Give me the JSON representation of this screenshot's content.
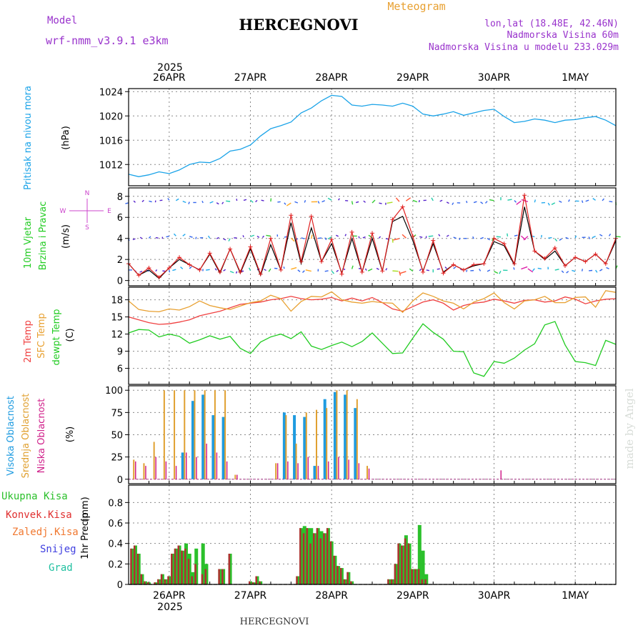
{
  "header": {
    "model_label": "Model",
    "model_name": "wrf-nmm_v3.9.1 e3km",
    "station": "HERCEGNOVI",
    "meteogram": "Meteogram",
    "lonlat": "lon,lat (18.48E, 42.46N)",
    "altitude": "Nadmorska Visina 60m",
    "model_altitude": "Nadmorska Visina u modelu 233.029m",
    "footer_station": "HERCEGNOVI",
    "watermark": "made by Angel"
  },
  "colors": {
    "pressure": "#1aa3e8",
    "wind_speed": "#e02020",
    "temp2m": "#f04040",
    "sfc_temp": "#e8a030",
    "dewpt": "#22cc22",
    "cloud_high": "#1e9be0",
    "cloud_mid": "#e0a030",
    "cloud_low": "#d0208a",
    "precip_total": "#2bc02b",
    "precip_conv": "#e03030",
    "precip_frozen": "#f07830",
    "snow": "#4040e0",
    "hail": "#20c0a0",
    "model_purple": "#9933cc"
  },
  "time_axis": {
    "year": "2025",
    "dates": [
      "26APR",
      "27APR",
      "28APR",
      "29APR",
      "30APR",
      "1MAY"
    ],
    "start_hour": 0,
    "end_hour": 144
  },
  "chart_data": [
    {
      "type": "line",
      "panel": "pressure",
      "ylabel": "Pritisak na nivou mora",
      "unit": "(hPa)",
      "yticks": [
        "1012",
        "1016",
        "1020",
        "1024"
      ],
      "ylim": [
        1008.5,
        1024.5
      ],
      "x": [
        0,
        3,
        6,
        9,
        12,
        15,
        18,
        21,
        24,
        27,
        30,
        33,
        36,
        39,
        42,
        45,
        48,
        51,
        54,
        57,
        60,
        63,
        66,
        69,
        72,
        75,
        78,
        81,
        84,
        87,
        90,
        93,
        96,
        99,
        102,
        105,
        108,
        111,
        114,
        117,
        120,
        123,
        126,
        129,
        132,
        135,
        138,
        141,
        144
      ],
      "values": [
        1010.4,
        1010.0,
        1010.3,
        1010.8,
        1010.5,
        1011.1,
        1012.0,
        1012.4,
        1012.3,
        1013.0,
        1014.2,
        1014.5,
        1015.2,
        1016.7,
        1017.9,
        1018.4,
        1019.0,
        1020.5,
        1021.3,
        1022.5,
        1023.4,
        1023.2,
        1021.8,
        1021.6,
        1021.9,
        1021.8,
        1021.6,
        1022.1,
        1021.6,
        1020.3,
        1020.0,
        1020.3,
        1020.7,
        1020.1,
        1020.5,
        1020.9,
        1021.1,
        1019.9,
        1018.9,
        1019.1,
        1019.5,
        1019.3,
        1018.9,
        1019.3,
        1019.4,
        1019.7,
        1019.9,
        1019.3,
        1018.4
      ]
    },
    {
      "type": "line",
      "panel": "wind",
      "ylabel": "10m Vjetar",
      "ylabel2": "Brzina i Pravac",
      "unit": "(m/s)",
      "compass": {
        "n": "N",
        "s": "S",
        "e": "E",
        "w": "W"
      },
      "yticks": [
        "0",
        "2",
        "4",
        "6",
        "8"
      ],
      "ylim": [
        -0.5,
        8.8
      ],
      "x": [
        0,
        3,
        6,
        9,
        12,
        15,
        18,
        21,
        24,
        27,
        30,
        33,
        36,
        39,
        42,
        45,
        48,
        51,
        54,
        57,
        60,
        63,
        66,
        69,
        72,
        75,
        78,
        81,
        84,
        87,
        90,
        93,
        96,
        99,
        102,
        105,
        108,
        111,
        114,
        117,
        120,
        123,
        126,
        129,
        132,
        135,
        138,
        141,
        144
      ],
      "values": [
        1.6,
        0.5,
        1.2,
        0.3,
        1.2,
        2.2,
        1.5,
        1.0,
        2.6,
        0.8,
        3.0,
        0.8,
        3.2,
        0.6,
        4.0,
        1.0,
        6.2,
        1.8,
        6.1,
        1.8,
        3.9,
        0.6,
        4.6,
        0.8,
        4.5,
        0.9,
        5.8,
        7.0,
        4.2,
        0.8,
        3.8,
        0.7,
        1.5,
        1.0,
        1.5,
        1.6,
        4.0,
        3.5,
        1.6,
        8.1,
        2.8,
        2.1,
        3.1,
        1.4,
        2.2,
        1.8,
        2.5,
        1.6,
        4.0
      ],
      "model_speed": [
        1.6,
        0.5,
        1.0,
        0.2,
        1.2,
        2.0,
        1.5,
        1.0,
        2.5,
        0.7,
        3.0,
        0.7,
        3.0,
        0.5,
        3.4,
        1.0,
        5.5,
        1.6,
        5.0,
        1.8,
        3.5,
        0.7,
        4.0,
        0.8,
        4.0,
        0.9,
        5.6,
        6.1,
        3.8,
        0.9,
        3.5,
        0.8,
        1.5,
        1.0,
        1.4,
        1.6,
        3.7,
        3.3,
        1.5,
        7.0,
        2.8,
        2.0,
        2.8,
        1.4,
        2.2,
        1.8,
        2.5,
        1.6,
        3.8
      ]
    },
    {
      "type": "line",
      "panel": "temperature",
      "ylabel_2m": "2m Temp",
      "ylabel_sfc": "SFC Temp",
      "ylabel_dew": "dewpt Temp",
      "unit": "(C)",
      "yticks": [
        "6",
        "9",
        "12",
        "15",
        "18"
      ],
      "ylim": [
        3.2,
        20.2
      ],
      "x": [
        0,
        3,
        6,
        9,
        12,
        15,
        18,
        21,
        24,
        27,
        30,
        33,
        36,
        39,
        42,
        45,
        48,
        51,
        54,
        57,
        60,
        63,
        66,
        69,
        72,
        75,
        78,
        81,
        84,
        87,
        90,
        93,
        96,
        99,
        102,
        105,
        108,
        111,
        114,
        117,
        120,
        123,
        126,
        129,
        132,
        135,
        138,
        141,
        144
      ],
      "series": [
        {
          "name": "2m Temp",
          "values": [
            15.0,
            14.5,
            14.0,
            13.7,
            13.8,
            14.1,
            14.5,
            15.2,
            15.6,
            16.0,
            16.6,
            17.2,
            17.4,
            17.6,
            18.0,
            18.2,
            18.6,
            18.2,
            18.0,
            18.1,
            18.4,
            17.8,
            18.3,
            17.8,
            18.4,
            17.5,
            16.4,
            16.0,
            16.8,
            17.6,
            18.0,
            17.4,
            16.2,
            17.0,
            17.4,
            17.6,
            18.1,
            17.8,
            17.4,
            17.9,
            18.0,
            17.6,
            17.8,
            18.5,
            18.1,
            17.3,
            17.8,
            18.1,
            18.2
          ]
        },
        {
          "name": "SFC Temp",
          "values": [
            17.8,
            16.3,
            16.0,
            15.9,
            16.4,
            16.2,
            16.8,
            17.8,
            17.0,
            16.6,
            16.3,
            16.9,
            17.5,
            17.8,
            18.8,
            18.2,
            16.0,
            17.7,
            18.6,
            18.5,
            19.4,
            18.0,
            17.6,
            17.4,
            17.7,
            17.5,
            17.4,
            15.8,
            17.8,
            19.2,
            18.6,
            17.8,
            17.4,
            16.4,
            17.6,
            18.2,
            19.2,
            17.5,
            16.4,
            17.8,
            18.0,
            18.6,
            17.5,
            17.5,
            18.4,
            18.5,
            16.7,
            19.6,
            19.3
          ]
        },
        {
          "name": "dewpt Temp",
          "values": [
            12.2,
            12.8,
            12.7,
            11.5,
            12.0,
            11.6,
            10.4,
            11.0,
            11.7,
            11.1,
            11.6,
            9.5,
            8.6,
            10.6,
            11.5,
            12.0,
            11.2,
            12.4,
            9.9,
            9.3,
            10.0,
            10.6,
            9.8,
            10.7,
            12.2,
            10.4,
            8.6,
            8.7,
            11.3,
            13.8,
            12.3,
            11.1,
            9.0,
            8.9,
            5.2,
            4.6,
            7.2,
            6.9,
            7.8,
            9.2,
            10.3,
            13.6,
            14.2,
            10.1,
            7.2,
            7.0,
            6.5,
            10.9,
            10.2
          ]
        }
      ]
    },
    {
      "type": "bar",
      "panel": "cloud",
      "ylabel_high": "Visoka Oblacnost",
      "ylabel_mid": "Srednja Oblacnost",
      "ylabel_low": "Niska Oblacnost",
      "unit": "(%)",
      "yticks": [
        "0",
        "25",
        "50",
        "75",
        "100"
      ],
      "ylim": [
        -5,
        105
      ],
      "x": [
        1,
        4,
        7,
        10,
        13,
        16,
        19,
        22,
        25,
        28,
        31,
        34,
        37,
        40,
        43,
        46,
        49,
        52,
        55,
        58,
        61,
        64,
        67,
        70,
        73,
        76,
        79,
        82,
        85,
        88,
        91,
        94,
        97,
        100,
        103,
        106,
        109,
        112,
        115,
        118,
        121,
        124,
        127,
        130,
        133,
        136,
        139,
        142
      ],
      "series": [
        {
          "name": "Visoka Oblacnost",
          "values": [
            0,
            0,
            0,
            0,
            0,
            30,
            88,
            95,
            72,
            70,
            0,
            0,
            0,
            0,
            0,
            75,
            72,
            70,
            15,
            90,
            98,
            95,
            80,
            0,
            0,
            0,
            0,
            0,
            0,
            0,
            0,
            0,
            0,
            0,
            0,
            0,
            0,
            0,
            0,
            0,
            0,
            0,
            0,
            0,
            0,
            0,
            0,
            0
          ]
        },
        {
          "name": "Srednja Oblacnost",
          "values": [
            22,
            18,
            42,
            100,
            100,
            100,
            100,
            100,
            100,
            100,
            5,
            0,
            0,
            0,
            18,
            72,
            40,
            75,
            78,
            80,
            100,
            100,
            90,
            15,
            0,
            0,
            0,
            0,
            0,
            0,
            0,
            0,
            0,
            0,
            0,
            0,
            0,
            0,
            0,
            0,
            0,
            0,
            0,
            0,
            0,
            0,
            0,
            0
          ]
        },
        {
          "name": "Niska Oblacnost",
          "values": [
            20,
            15,
            25,
            20,
            15,
            30,
            25,
            40,
            30,
            20,
            5,
            0,
            0,
            0,
            18,
            20,
            18,
            25,
            15,
            20,
            25,
            22,
            18,
            12,
            0,
            0,
            0,
            0,
            0,
            0,
            0,
            0,
            0,
            0,
            0,
            0,
            10,
            0,
            0,
            0,
            0,
            0,
            0,
            0,
            0,
            0,
            0,
            0
          ]
        }
      ]
    },
    {
      "type": "bar",
      "panel": "precip",
      "ylabel": "1hr Precip",
      "unit": "(mm)",
      "legend": [
        "Ukupna Kisa",
        "Konvek.Kisa",
        "Zaledj.Kisa",
        "Snijeg",
        "Grad"
      ],
      "yticks": [
        "0",
        "0.2",
        "0.4",
        "0.6",
        "0.8"
      ],
      "ylim": [
        0,
        0.97
      ],
      "x": [
        1,
        2,
        3,
        4,
        5,
        6,
        8,
        9,
        10,
        11,
        12,
        13,
        14,
        15,
        16,
        17,
        18,
        19,
        20,
        22,
        23,
        27,
        28,
        30,
        36,
        37,
        38,
        39,
        50,
        51,
        52,
        53,
        54,
        55,
        56,
        57,
        58,
        59,
        60,
        61,
        62,
        63,
        64,
        65,
        66,
        77,
        78,
        79,
        80,
        81,
        82,
        83,
        84,
        85,
        86,
        87,
        88
      ],
      "values": [
        0.35,
        0.38,
        0.3,
        0.1,
        0.03,
        0.02,
        0.02,
        0.05,
        0.1,
        0.05,
        0.08,
        0.3,
        0.35,
        0.38,
        0.33,
        0.4,
        0.3,
        0.12,
        0.35,
        0.4,
        0.2,
        0.15,
        0.15,
        0.3,
        0.03,
        0.02,
        0.08,
        0.03,
        0.08,
        0.55,
        0.57,
        0.55,
        0.55,
        0.5,
        0.55,
        0.52,
        0.5,
        0.55,
        0.42,
        0.28,
        0.18,
        0.16,
        0.05,
        0.12,
        0.03,
        0.05,
        0.05,
        0.2,
        0.4,
        0.38,
        0.48,
        0.4,
        0.15,
        0.15,
        0.58,
        0.33,
        0.1
      ],
      "convective": [
        0.35,
        0.38,
        0.3,
        0.1,
        0.03,
        0.02,
        0.02,
        0.05,
        0.1,
        0.05,
        0.08,
        0.3,
        0.35,
        0.38,
        0.33,
        0.35,
        0.25,
        0.08,
        0.2,
        0.1,
        0.15,
        0.15,
        0.15,
        0.3,
        0.03,
        0.02,
        0.08,
        0.03,
        0.08,
        0.55,
        0.5,
        0.55,
        0.4,
        0.5,
        0.55,
        0.45,
        0.5,
        0.55,
        0.42,
        0.28,
        0.18,
        0.16,
        0.05,
        0.12,
        0.03,
        0.05,
        0.05,
        0.2,
        0.4,
        0.38,
        0.45,
        0.4,
        0.15,
        0.15,
        0.15,
        0.05,
        0.05
      ]
    }
  ]
}
